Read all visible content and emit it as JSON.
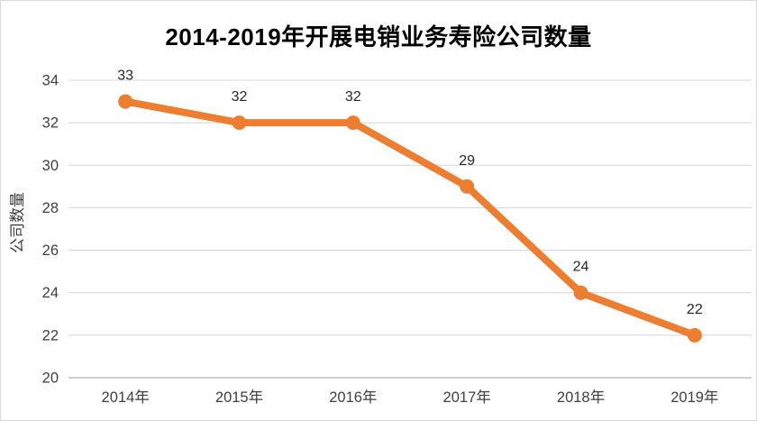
{
  "chart_data": {
    "type": "line",
    "title": "2014-2019年开展电销业务寿险公司数量",
    "xlabel": "",
    "ylabel": "公司数量",
    "categories": [
      "2014年",
      "2015年",
      "2016年",
      "2017年",
      "2018年",
      "2019年"
    ],
    "series": [
      {
        "name": "公司数量",
        "values": [
          33,
          32,
          32,
          29,
          24,
          22
        ]
      }
    ],
    "data_labels": [
      "33",
      "32",
      "32",
      "29",
      "24",
      "22"
    ],
    "ylim": [
      20,
      34
    ],
    "yticks": [
      20,
      22,
      24,
      26,
      28,
      30,
      32,
      34
    ],
    "grid": true,
    "legend_position": "none",
    "marker": "circle",
    "colors": {
      "line": "#ED7D31",
      "marker": "#ED7D31",
      "gridline": "#D9D9D9",
      "axis_line": "#BFBFBF",
      "tick_label": "#3F3F3F",
      "data_label": "#262626",
      "title": "#000000",
      "background": "#FFFFFF",
      "frame_border": "#D9D9D9"
    }
  }
}
